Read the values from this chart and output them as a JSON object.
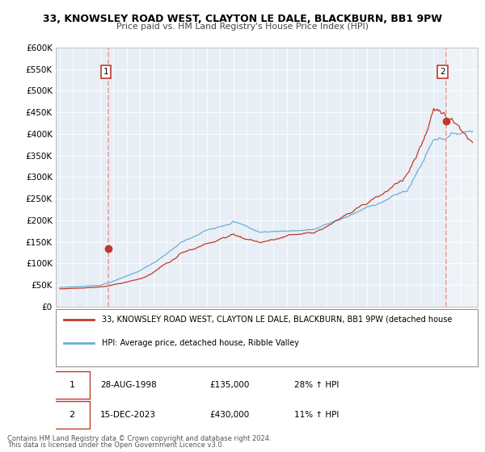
{
  "title": "33, KNOWSLEY ROAD WEST, CLAYTON LE DALE, BLACKBURN, BB1 9PW",
  "subtitle": "Price paid vs. HM Land Registry's House Price Index (HPI)",
  "ylim": [
    0,
    600000
  ],
  "yticks": [
    0,
    50000,
    100000,
    150000,
    200000,
    250000,
    300000,
    350000,
    400000,
    450000,
    500000,
    550000,
    600000
  ],
  "xlim_start": 1994.7,
  "xlim_end": 2026.3,
  "hpi_color": "#6baed6",
  "price_color": "#c0392b",
  "vline_color": "#e8a0a0",
  "sale1_x": 1998.65,
  "sale1_y": 135000,
  "sale2_x": 2023.96,
  "sale2_y": 430000,
  "legend_line1": "33, KNOWSLEY ROAD WEST, CLAYTON LE DALE, BLACKBURN, BB1 9PW (detached house",
  "legend_line2": "HPI: Average price, detached house, Ribble Valley",
  "table_row1_date": "28-AUG-1998",
  "table_row1_price": "£135,000",
  "table_row1_hpi": "28% ↑ HPI",
  "table_row2_date": "15-DEC-2023",
  "table_row2_price": "£430,000",
  "table_row2_hpi": "11% ↑ HPI",
  "footnote1": "Contains HM Land Registry data © Crown copyright and database right 2024.",
  "footnote2": "This data is licensed under the Open Government Licence v3.0.",
  "bg_color": "#ffffff",
  "chart_bg_color": "#e8eef5",
  "grid_color": "#ffffff",
  "hatch_color": "#cccccc"
}
